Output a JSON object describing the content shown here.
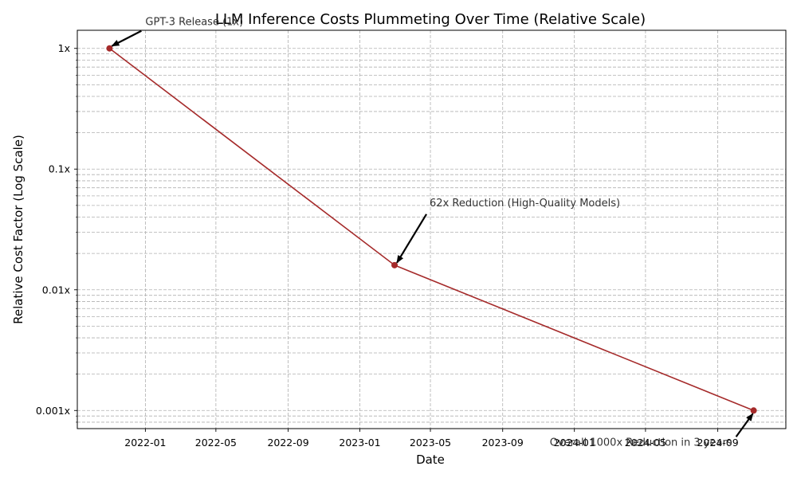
{
  "chart_data": {
    "type": "line",
    "title": "LLM Inference Costs Plummeting Over Time (Relative Scale)",
    "xlabel": "Date",
    "ylabel": "Relative Cost Factor (Log Scale)",
    "yscale": "log",
    "grid": true,
    "series": [
      {
        "x": [
          "2021-11-01",
          "2023-03-01",
          "2024-11-01"
        ],
        "values": [
          1,
          0.016,
          0.001
        ],
        "color": "#a52a2a"
      }
    ],
    "x_ticks": [
      "2022-01",
      "2022-05",
      "2022-09",
      "2023-01",
      "2023-05",
      "2023-09",
      "2024-01",
      "2024-05",
      "2024-09"
    ],
    "y_ticks": [
      {
        "value": 1,
        "label": "1x"
      },
      {
        "value": 0.1,
        "label": "0.1x"
      },
      {
        "value": 0.01,
        "label": "0.01x"
      },
      {
        "value": 0.001,
        "label": "0.001x"
      }
    ],
    "annotations": [
      {
        "text": "GPT-3 Release (1x)",
        "x": "2021-11-01",
        "y": 1
      },
      {
        "text": "62x Reduction (High-Quality Models)",
        "x": "2023-03-01",
        "y": 0.016
      },
      {
        "text": "Overall 1000x Reduction in 3 years",
        "x": "2024-11-01",
        "y": 0.001
      }
    ]
  }
}
